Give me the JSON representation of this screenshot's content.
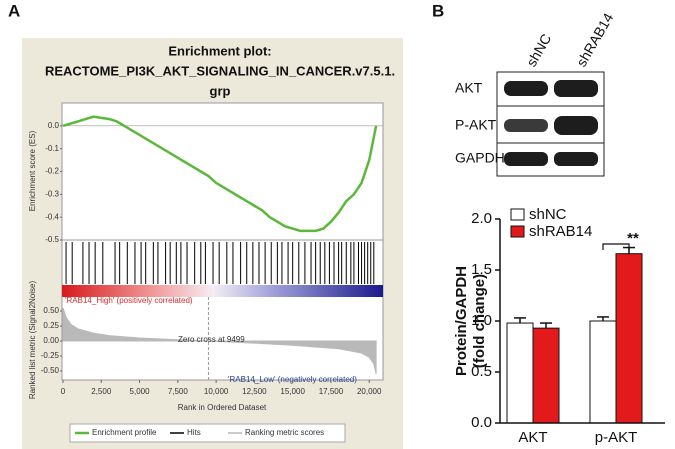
{
  "panel_labels": [
    "A",
    "B"
  ],
  "blot": {
    "columns": [
      "shNC",
      "shRAB14"
    ],
    "rows": [
      "AKT",
      "P-AKT",
      "GAPDH"
    ]
  },
  "chart_data": [
    {
      "type": "gsea",
      "title": [
        "Enrichment plot:",
        "REACTOME_PI3K_AKT_SIGNALING_IN_CANCER.v7.5.1.",
        "grp"
      ],
      "x_label": "Rank in Ordered Dataset",
      "xlim": [
        0,
        20900
      ],
      "xticks": [
        0,
        {
          "value": 2500,
          "label": "2,500"
        },
        {
          "value": 5000,
          "label": "5,000"
        },
        {
          "value": 7500,
          "label": "7,500"
        },
        {
          "value": 10000,
          "label": "10,000"
        },
        {
          "value": 12500,
          "label": "12,500"
        },
        {
          "value": 15000,
          "label": "15,000"
        },
        {
          "value": 17500,
          "label": "17,500"
        },
        {
          "value": 20000,
          "label": "20,000"
        }
      ],
      "es": {
        "y_label": "Enrichment score (ES)",
        "color": "#5cb83a",
        "ylim": [
          -0.5,
          0.1
        ],
        "yticks": [
          {
            "value": 0,
            "label": "0.0"
          },
          -0.1,
          -0.2,
          -0.3,
          -0.4,
          -0.5
        ],
        "x": [
          0,
          500,
          1000,
          1500,
          2000,
          2500,
          3000,
          3500,
          4000,
          4500,
          5000,
          5500,
          6000,
          6500,
          7000,
          7500,
          8000,
          8500,
          9000,
          9500,
          10000,
          10500,
          11000,
          11500,
          12000,
          12500,
          13000,
          13500,
          14000,
          14500,
          15000,
          15500,
          16000,
          16500,
          17000,
          17500,
          18000,
          18500,
          19000,
          19500,
          20000,
          20300,
          20450
        ],
        "values": [
          0.0,
          0.01,
          0.02,
          0.03,
          0.04,
          0.035,
          0.03,
          0.02,
          0.0,
          -0.02,
          -0.04,
          -0.06,
          -0.08,
          -0.1,
          -0.12,
          -0.14,
          -0.16,
          -0.18,
          -0.2,
          -0.22,
          -0.25,
          -0.27,
          -0.29,
          -0.31,
          -0.33,
          -0.35,
          -0.37,
          -0.4,
          -0.42,
          -0.44,
          -0.45,
          -0.46,
          -0.46,
          -0.46,
          -0.45,
          -0.42,
          -0.38,
          -0.33,
          -0.3,
          -0.25,
          -0.15,
          -0.05,
          0.0
        ]
      },
      "hits": [
        200,
        600,
        1300,
        1700,
        2100,
        2600,
        3400,
        3700,
        4200,
        4700,
        5100,
        5400,
        5900,
        6200,
        6700,
        7000,
        7400,
        7700,
        8100,
        8600,
        9000,
        9300,
        9800,
        10200,
        10700,
        11100,
        11600,
        12000,
        12400,
        12800,
        13200,
        13600,
        14000,
        14300,
        14700,
        15000,
        15400,
        15800,
        16200,
        16500,
        16800,
        17100,
        17400,
        17700,
        18000,
        18200,
        18500,
        18800,
        19000,
        19300,
        19500,
        19700,
        19900,
        20100,
        20300
      ],
      "metric": {
        "y_label": "Ranked list metric (Signal2Noise)",
        "color": "#b9b9b9",
        "ylim": [
          -0.6,
          0.6
        ],
        "yticks": [
          {
            "value": 0.5,
            "label": "0.50"
          },
          {
            "value": 0.25,
            "label": "0.25"
          },
          {
            "value": 0,
            "label": "0.00"
          },
          {
            "value": -0.25,
            "label": "-0.25"
          },
          {
            "value": -0.5,
            "label": "-0.50"
          }
        ],
        "x": [
          0,
          200,
          500,
          1000,
          2000,
          3000,
          5000,
          7500,
          9499,
          12000,
          15000,
          18000,
          19500,
          20000,
          20300,
          20450
        ],
        "values": [
          0.55,
          0.4,
          0.28,
          0.2,
          0.13,
          0.09,
          0.05,
          0.02,
          0,
          -0.03,
          -0.07,
          -0.13,
          -0.2,
          -0.27,
          -0.38,
          -0.55
        ]
      },
      "zero_cross": 9499,
      "zero_cross_label": "Zero cross at 9499",
      "high_label": "'RAB14_High' (positively correlated)",
      "low_label": "'RAB14_Low' (negatively correlated)",
      "legend": [
        "Enrichment profile",
        "Hits",
        "Ranking metric scores"
      ]
    },
    {
      "type": "bar",
      "y_label": [
        "Protein/GAPDH",
        "(fold change)"
      ],
      "categories": [
        "AKT",
        "p-AKT"
      ],
      "ylim": [
        0,
        2.0
      ],
      "yticks": [
        {
          "value": 0,
          "label": "0.0"
        },
        0.5,
        {
          "value": 1,
          "label": "1.0"
        },
        1.5,
        {
          "value": 2,
          "label": "2.0"
        }
      ],
      "series": [
        {
          "name": "shNC",
          "color": "#ffffff",
          "values": [
            0.98,
            1.0
          ],
          "errors": [
            0.05,
            0.04
          ]
        },
        {
          "name": "shRAB14",
          "color": "#e31a1c",
          "values": [
            0.93,
            1.66
          ],
          "errors": [
            0.05,
            0.06
          ]
        }
      ],
      "significance": "**"
    }
  ]
}
